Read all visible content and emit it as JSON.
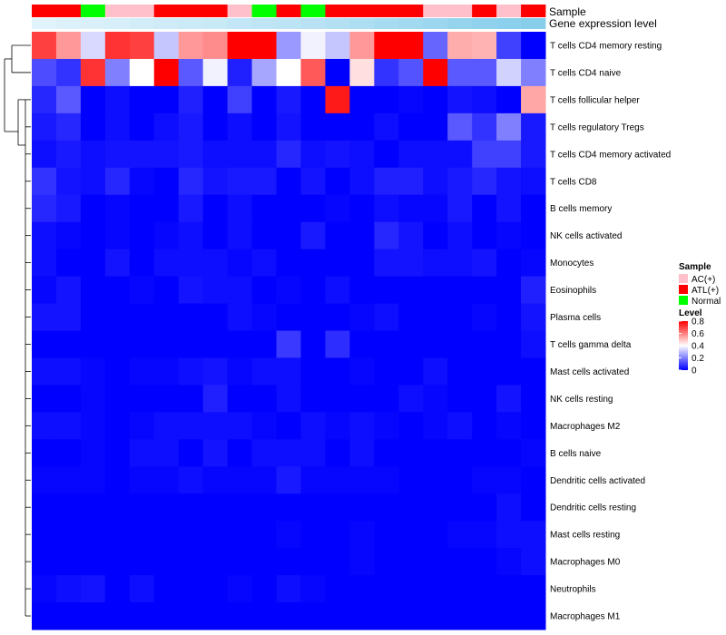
{
  "chart_data": {
    "type": "heatmap",
    "title": "",
    "rows": [
      "T cells CD4 memory resting",
      "T cells CD4 naive",
      "T cells follicular helper",
      "T cells regulatory  Tregs",
      "T cells CD4 memory activated",
      "T cells CD8",
      "B cells memory",
      "NK cells activated",
      "Monocytes",
      "Eosinophils",
      "Plasma cells",
      "T cells gamma delta",
      "Mast cells activated",
      "NK cells resting",
      "Macrophages M2",
      "B cells naive",
      "Dendritic cells activated",
      "Dendritic cells resting",
      "Mast cells resting",
      "Macrophages M0",
      "Neutrophils",
      "Macrophages M1"
    ],
    "column_annotations": {
      "sample_label": "Sample",
      "gene_label": "Gene expression level",
      "sample": [
        "ATL(+)",
        "ATL(+)",
        "Normal",
        "AC(+)",
        "AC(+)",
        "ATL(+)",
        "ATL(+)",
        "ATL(+)",
        "AC(+)",
        "Normal",
        "ATL(+)",
        "Normal",
        "ATL(+)",
        "ATL(+)",
        "ATL(+)",
        "ATL(+)",
        "AC(+)",
        "AC(+)",
        "ATL(+)",
        "AC(+)",
        "ATL(+)"
      ],
      "gene_level": [
        0.05,
        0.08,
        0.1,
        0.12,
        0.15,
        0.18,
        0.2,
        0.22,
        0.25,
        0.28,
        0.3,
        0.33,
        0.36,
        0.4,
        0.44,
        0.48,
        0.52,
        0.56,
        0.6,
        0.63,
        0.66
      ]
    },
    "values": [
      [
        0.7,
        0.56,
        0.34,
        0.72,
        0.7,
        0.31,
        0.56,
        0.58,
        0.8,
        0.8,
        0.24,
        0.38,
        0.31,
        0.56,
        0.8,
        0.8,
        0.16,
        0.53,
        0.52,
        0.1,
        0.0
      ],
      [
        0.12,
        0.08,
        0.72,
        0.2,
        0.4,
        0.8,
        0.14,
        0.38,
        0.05,
        0.26,
        0.4,
        0.66,
        0.0,
        0.45,
        0.08,
        0.13,
        0.8,
        0.14,
        0.14,
        0.33,
        0.2
      ],
      [
        0.06,
        0.14,
        0.0,
        0.02,
        0.0,
        0.0,
        0.05,
        0.0,
        0.1,
        0.0,
        0.04,
        0.0,
        0.76,
        0.0,
        0.0,
        0.01,
        0.0,
        0.03,
        0.02,
        0.0,
        0.54
      ],
      [
        0.04,
        0.06,
        0.0,
        0.02,
        0.0,
        0.02,
        0.04,
        0.0,
        0.02,
        0.0,
        0.03,
        0.0,
        0.0,
        0.0,
        0.02,
        0.0,
        0.0,
        0.14,
        0.08,
        0.2,
        0.04
      ],
      [
        0.02,
        0.04,
        0.02,
        0.03,
        0.03,
        0.03,
        0.04,
        0.02,
        0.02,
        0.02,
        0.06,
        0.02,
        0.03,
        0.02,
        0.0,
        0.02,
        0.02,
        0.02,
        0.1,
        0.1,
        0.04
      ],
      [
        0.08,
        0.03,
        0.02,
        0.06,
        0.01,
        0.0,
        0.06,
        0.03,
        0.04,
        0.04,
        0.0,
        0.03,
        0.0,
        0.02,
        0.05,
        0.05,
        0.02,
        0.04,
        0.06,
        0.03,
        0.02
      ],
      [
        0.06,
        0.04,
        0.0,
        0.01,
        0.0,
        0.0,
        0.04,
        0.0,
        0.02,
        0.0,
        0.0,
        0.0,
        0.01,
        0.0,
        0.02,
        0.01,
        0.01,
        0.04,
        0.0,
        0.03,
        0.0
      ],
      [
        0.02,
        0.01,
        0.0,
        0.01,
        0.0,
        0.01,
        0.02,
        0.0,
        0.02,
        0.0,
        0.0,
        0.04,
        0.0,
        0.0,
        0.06,
        0.03,
        0.0,
        0.02,
        0.0,
        0.01,
        0.0
      ],
      [
        0.02,
        0.0,
        0.0,
        0.03,
        0.0,
        0.02,
        0.02,
        0.02,
        0.01,
        0.02,
        0.0,
        0.0,
        0.0,
        0.0,
        0.03,
        0.03,
        0.02,
        0.02,
        0.03,
        0.0,
        0.01
      ],
      [
        0.01,
        0.03,
        0.0,
        0.0,
        0.01,
        0.0,
        0.03,
        0.02,
        0.02,
        0.0,
        0.01,
        0.0,
        0.02,
        0.0,
        0.0,
        0.0,
        0.0,
        0.0,
        0.0,
        0.0,
        0.05
      ],
      [
        0.03,
        0.03,
        0.0,
        0.0,
        0.0,
        0.0,
        0.0,
        0.0,
        0.02,
        0.01,
        0.0,
        0.0,
        0.0,
        0.01,
        0.02,
        0.0,
        0.0,
        0.0,
        0.01,
        0.0,
        0.03
      ],
      [
        0.0,
        0.0,
        0.0,
        0.0,
        0.0,
        0.0,
        0.0,
        0.0,
        0.0,
        0.0,
        0.09,
        0.0,
        0.07,
        0.0,
        0.0,
        0.0,
        0.0,
        0.0,
        0.0,
        0.0,
        0.02
      ],
      [
        0.02,
        0.02,
        0.01,
        0.0,
        0.01,
        0.01,
        0.02,
        0.03,
        0.01,
        0.02,
        0.02,
        0.0,
        0.0,
        0.01,
        0.0,
        0.0,
        0.02,
        0.0,
        0.0,
        0.0,
        0.0
      ],
      [
        0.0,
        0.0,
        0.01,
        0.0,
        0.0,
        0.0,
        0.0,
        0.05,
        0.0,
        0.0,
        0.02,
        0.0,
        0.0,
        0.0,
        0.0,
        0.02,
        0.01,
        0.0,
        0.0,
        0.03,
        0.0
      ],
      [
        0.02,
        0.02,
        0.01,
        0.0,
        0.01,
        0.02,
        0.02,
        0.02,
        0.02,
        0.01,
        0.0,
        0.02,
        0.01,
        0.02,
        0.01,
        0.0,
        0.01,
        0.02,
        0.0,
        0.01,
        0.0
      ],
      [
        0.0,
        0.0,
        0.01,
        0.0,
        0.02,
        0.02,
        0.0,
        0.03,
        0.0,
        0.02,
        0.02,
        0.02,
        0.0,
        0.02,
        0.0,
        0.0,
        0.0,
        0.0,
        0.0,
        0.0,
        0.01
      ],
      [
        0.01,
        0.01,
        0.01,
        0.0,
        0.01,
        0.01,
        0.02,
        0.01,
        0.01,
        0.01,
        0.04,
        0.01,
        0.01,
        0.01,
        0.01,
        0.0,
        0.0,
        0.0,
        0.01,
        0.01,
        0.0
      ],
      [
        0.0,
        0.0,
        0.0,
        0.0,
        0.0,
        0.0,
        0.0,
        0.0,
        0.0,
        0.0,
        0.0,
        0.0,
        0.0,
        0.0,
        0.0,
        0.0,
        0.0,
        0.0,
        0.0,
        0.02,
        0.0
      ],
      [
        0.0,
        0.0,
        0.0,
        0.0,
        0.0,
        0.0,
        0.0,
        0.0,
        0.0,
        0.0,
        0.01,
        0.0,
        0.0,
        0.01,
        0.0,
        0.0,
        0.0,
        0.01,
        0.01,
        0.02,
        0.02
      ],
      [
        0.0,
        0.0,
        0.0,
        0.0,
        0.0,
        0.0,
        0.0,
        0.0,
        0.0,
        0.0,
        0.0,
        0.0,
        0.0,
        0.01,
        0.0,
        0.0,
        0.0,
        0.0,
        0.0,
        0.01,
        0.02
      ],
      [
        0.01,
        0.02,
        0.03,
        0.0,
        0.02,
        0.0,
        0.0,
        0.0,
        0.01,
        0.0,
        0.02,
        0.01,
        0.0,
        0.0,
        0.0,
        0.0,
        0.0,
        0.0,
        0.0,
        0.0,
        0.0
      ],
      [
        0.0,
        0.0,
        0.0,
        0.0,
        0.0,
        0.0,
        0.0,
        0.0,
        0.0,
        0.0,
        0.0,
        0.0,
        0.0,
        0.0,
        0.0,
        0.0,
        0.0,
        0.0,
        0.0,
        0.0,
        0.0
      ]
    ],
    "color_scale": {
      "min": 0,
      "max": 0.8,
      "colors": [
        "#0000ff",
        "#ffffff",
        "#ff0000"
      ]
    },
    "legend": {
      "position": "right",
      "sample_title": "Sample",
      "sample_items": [
        {
          "label": "AC(+)",
          "color": "#ffc0cb"
        },
        {
          "label": "ATL(+)",
          "color": "#ff0000"
        },
        {
          "label": "Normal",
          "color": "#00ff00"
        }
      ],
      "level_title": "Level",
      "level_ticks": [
        0.8,
        0.6,
        0.4,
        0.2,
        0
      ],
      "level_tick_labels": [
        "0.8",
        "0.6",
        "0.4",
        "0.2",
        "0"
      ]
    },
    "gene_level_colors": [
      "#e8f6fc",
      "#87ceeb"
    ],
    "dendrogram": "row clustering (left side)"
  }
}
